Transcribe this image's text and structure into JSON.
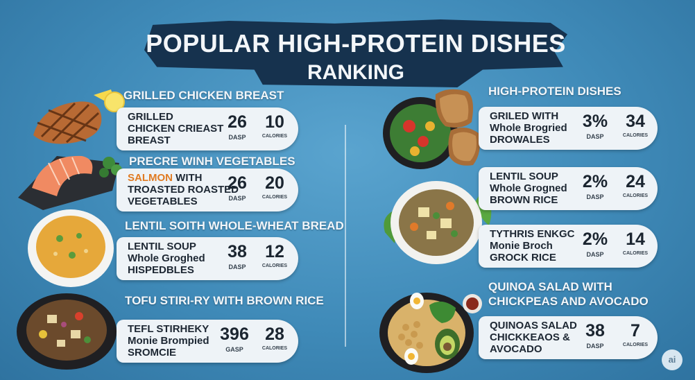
{
  "title": {
    "line1": "POPULAR HIGH-PROTEIN DISHES",
    "line2": "RANKING"
  },
  "left_column": [
    {
      "heading": "GRILLED CHICKEN BREAST",
      "lines": [
        "GRILLED",
        "CHICKEN CRIEAST",
        "BREAST"
      ],
      "stat1": {
        "value": "26",
        "label": "DASP"
      },
      "stat2": {
        "value": "10",
        "label": "CALORIES"
      },
      "food_icon": "grilled-chicken"
    },
    {
      "heading": "PRECRE WINH VEGETABLES",
      "lines_accent": "SALMON",
      "lines": [
        "WITH",
        "TROASTED ROASTED",
        "VEGETABLES"
      ],
      "stat1": {
        "value": "26",
        "label": "DASP"
      },
      "stat2": {
        "value": "20",
        "label": "CALORIES"
      },
      "food_icon": "salmon"
    },
    {
      "heading": "LENTIL SOITH WHOLE-WHEAT BREAD",
      "lines": [
        "LENTIL SOUP",
        "Whole Groghed",
        "HISPEDBLES"
      ],
      "stat1": {
        "value": "38",
        "label": "DASP"
      },
      "stat2": {
        "value": "12",
        "label": "CALORIES"
      },
      "food_icon": "lentil-soup"
    },
    {
      "heading": "TOFU STIRI-RY WITH BROWN RICE",
      "lines": [
        "TEFL STIRHEKY",
        "Monie Brompied",
        "SROMCIE"
      ],
      "stat1": {
        "value": "396",
        "label": "GASP"
      },
      "stat2": {
        "value": "28",
        "label": "CALORIES"
      },
      "food_icon": "tofu-stir-fry"
    }
  ],
  "right_column": [
    {
      "heading": "HIGH-PROTEIN DISHES",
      "lines": [
        "GRILED WITH",
        "Whole Brogried",
        "DROWALES"
      ],
      "stat1": {
        "value": "3%",
        "label": "DASP"
      },
      "stat2": {
        "value": "34",
        "label": "CALORIES"
      },
      "food_icon": "salad-bread"
    },
    {
      "heading": "",
      "lines": [
        "LENTIL SOUP",
        "Whole Grogned",
        "BROWN RICE"
      ],
      "stat1": {
        "value": "2%",
        "label": "DASP"
      },
      "stat2": {
        "value": "24",
        "label": "CALORIES"
      },
      "food_icon": "stew-bowl"
    },
    {
      "heading": "",
      "lines": [
        "TYTHRIS ENKGC",
        "Monie Broch",
        "GROCK RICE"
      ],
      "stat1": {
        "value": "2%",
        "label": "DASP"
      },
      "stat2": {
        "value": "14",
        "label": "CALORIES"
      },
      "food_icon": ""
    },
    {
      "heading": "QUINOA SALAD WITH",
      "heading2": "CHICKPEAS AND AVOCADO",
      "lines": [
        "QUINOAS SALAD",
        "CHICKKEAOS &",
        "AVOCADO"
      ],
      "stat1": {
        "value": "38",
        "label": "DASP"
      },
      "stat2": {
        "value": "7",
        "label": "CALORIES"
      },
      "food_icon": "quinoa-bowl"
    }
  ],
  "badge": "ai",
  "colors": {
    "background": "#3f8ab8",
    "banner": "#16324e",
    "card": "#eef3f7",
    "accent": "#e07b22"
  }
}
